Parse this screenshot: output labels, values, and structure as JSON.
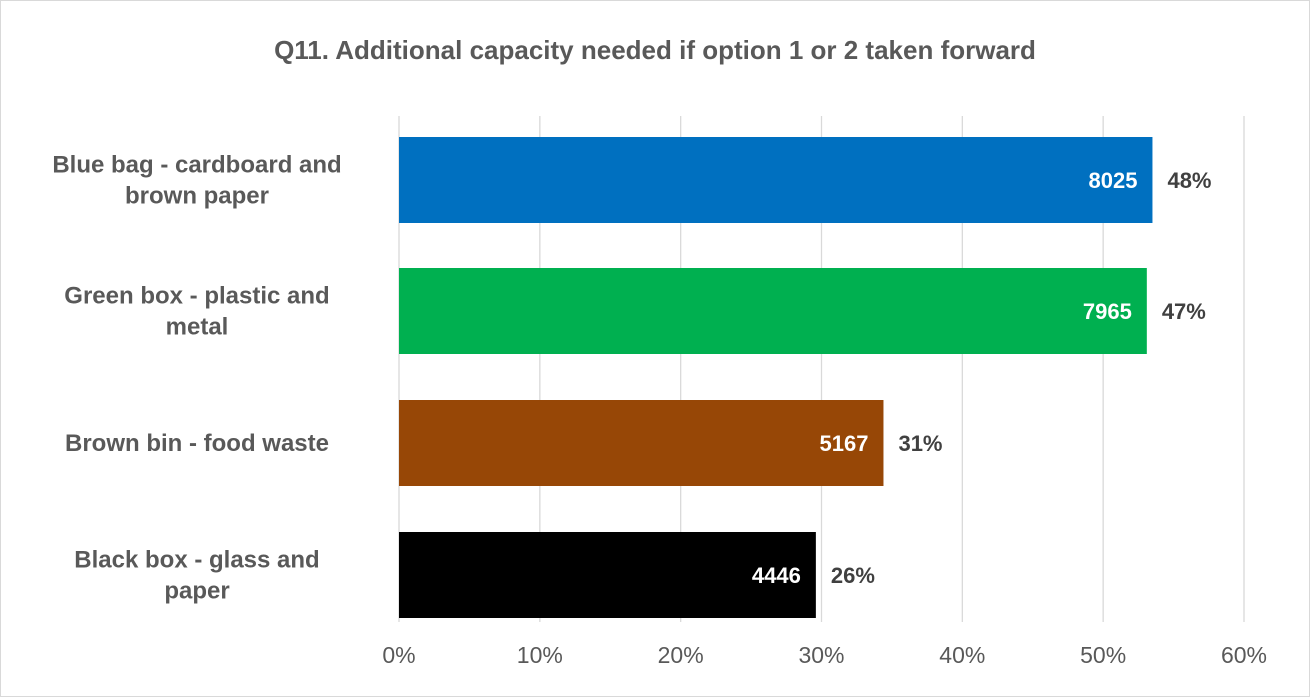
{
  "chart_data": {
    "type": "bar",
    "orientation": "horizontal",
    "title": "Q11. Additional capacity needed if option 1 or 2 taken forward",
    "xlabel": "",
    "ylabel": "",
    "xlim": [
      0,
      60
    ],
    "x_ticks": [
      "0%",
      "10%",
      "20%",
      "30%",
      "40%",
      "50%",
      "60%"
    ],
    "grid": true,
    "legend": "none",
    "bars": [
      {
        "label_lines": [
          "Blue bag - cardboard and",
          "brown paper"
        ],
        "value": 53.5,
        "count_label": "8025",
        "percent_label": "48%",
        "color": "#0070c0"
      },
      {
        "label_lines": [
          "Green box - plastic and",
          "metal"
        ],
        "value": 53.1,
        "count_label": "7965",
        "percent_label": "47%",
        "color": "#00b050"
      },
      {
        "label_lines": [
          "Brown bin - food waste"
        ],
        "value": 34.4,
        "count_label": "5167",
        "percent_label": "31%",
        "color": "#974706"
      },
      {
        "label_lines": [
          "Black box - glass and",
          "paper"
        ],
        "value": 29.6,
        "count_label": "4446",
        "percent_label": "26%",
        "color": "#000000"
      }
    ]
  }
}
